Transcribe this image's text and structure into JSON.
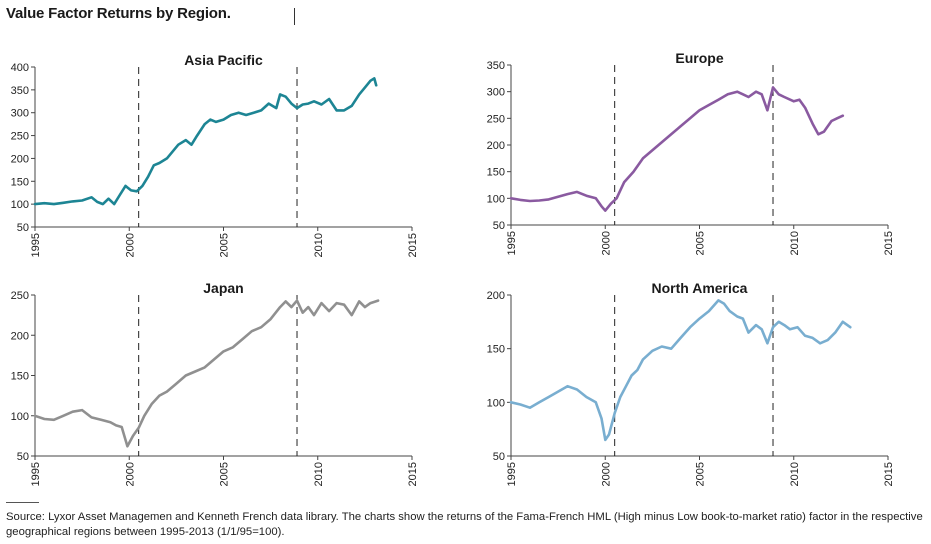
{
  "page": {
    "title": "Value Factor Returns by Region.",
    "source": "Source: Lyxor Asset Managemen and Kenneth French data library. The charts show the returns of the Fama-French HML (High minus Low book-to-market ratio) factor in the respective geographical regions between 1995-2013 (1/1/95=100)."
  },
  "chart_data": [
    {
      "type": "line",
      "title": "Asia Pacific",
      "color": "#1d8594",
      "xlim": [
        1995,
        2015
      ],
      "ylim": [
        50,
        400
      ],
      "xticks": [
        1995,
        2000,
        2005,
        2010,
        2015
      ],
      "yticks": [
        50,
        100,
        150,
        200,
        250,
        300,
        350,
        400
      ],
      "vlines": [
        2000.5,
        2008.9
      ],
      "series": [
        {
          "x": [
            1995,
            1995.5,
            1996,
            1996.5,
            1997,
            1997.5,
            1998,
            1998.3,
            1998.6,
            1998.9,
            1999.2,
            1999.5,
            1999.8,
            2000.1,
            2000.4,
            2000.7,
            2001,
            2001.3,
            2001.6,
            2002,
            2002.3,
            2002.6,
            2003,
            2003.3,
            2003.6,
            2004,
            2004.3,
            2004.6,
            2005,
            2005.4,
            2005.8,
            2006.2,
            2006.6,
            2007,
            2007.4,
            2007.8,
            2008,
            2008.3,
            2008.6,
            2008.9,
            2009.2,
            2009.5,
            2009.8,
            2010.2,
            2010.6,
            2011,
            2011.4,
            2011.8,
            2012.2,
            2012.5,
            2012.8,
            2013,
            2013.1
          ],
          "y": [
            100,
            102,
            100,
            103,
            106,
            108,
            115,
            105,
            100,
            112,
            100,
            120,
            140,
            130,
            128,
            140,
            160,
            185,
            190,
            200,
            215,
            230,
            240,
            230,
            250,
            275,
            285,
            280,
            285,
            295,
            300,
            295,
            300,
            305,
            320,
            310,
            340,
            335,
            320,
            310,
            318,
            320,
            325,
            318,
            330,
            305,
            305,
            315,
            340,
            355,
            370,
            375,
            360
          ]
        }
      ]
    },
    {
      "type": "line",
      "title": "Europe",
      "color": "#8a5aa0",
      "xlim": [
        1995,
        2015
      ],
      "ylim": [
        50,
        350
      ],
      "xticks": [
        1995,
        2000,
        2005,
        2010,
        2015
      ],
      "yticks": [
        50,
        100,
        150,
        200,
        250,
        300,
        350
      ],
      "vlines": [
        2000.5,
        2008.9
      ],
      "series": [
        {
          "x": [
            1995,
            1995.5,
            1996,
            1996.5,
            1997,
            1997.5,
            1998,
            1998.5,
            1999,
            1999.5,
            1999.8,
            2000,
            2000.3,
            2000.6,
            2001,
            2001.5,
            2002,
            2002.5,
            2003,
            2003.5,
            2004,
            2004.5,
            2005,
            2005.5,
            2006,
            2006.5,
            2007,
            2007.3,
            2007.6,
            2008,
            2008.3,
            2008.6,
            2008.9,
            2009.2,
            2009.5,
            2010,
            2010.3,
            2010.6,
            2011,
            2011.3,
            2011.6,
            2012,
            2012.3,
            2012.6
          ],
          "y": [
            100,
            97,
            95,
            96,
            98,
            103,
            108,
            112,
            105,
            100,
            85,
            77,
            90,
            100,
            130,
            150,
            175,
            190,
            205,
            220,
            235,
            250,
            265,
            275,
            285,
            295,
            300,
            295,
            290,
            300,
            295,
            265,
            308,
            295,
            290,
            282,
            285,
            270,
            240,
            220,
            225,
            245,
            250,
            255
          ]
        }
      ]
    },
    {
      "type": "line",
      "title": "Japan",
      "color": "#909090",
      "xlim": [
        1995,
        2015
      ],
      "ylim": [
        50,
        250
      ],
      "xticks": [
        1995,
        2000,
        2005,
        2010,
        2015
      ],
      "yticks": [
        50,
        100,
        150,
        200,
        250
      ],
      "vlines": [
        2000.5,
        2008.9
      ],
      "series": [
        {
          "x": [
            1995,
            1995.5,
            1996,
            1996.5,
            1997,
            1997.5,
            1998,
            1998.5,
            1999,
            1999.3,
            1999.6,
            1999.9,
            2000.2,
            2000.5,
            2000.8,
            2001.2,
            2001.6,
            2002,
            2002.5,
            2003,
            2003.5,
            2004,
            2004.5,
            2005,
            2005.5,
            2006,
            2006.5,
            2007,
            2007.5,
            2008,
            2008.3,
            2008.6,
            2008.9,
            2009.2,
            2009.5,
            2009.8,
            2010.2,
            2010.6,
            2011,
            2011.4,
            2011.8,
            2012.2,
            2012.5,
            2012.8,
            2013.2
          ],
          "y": [
            100,
            96,
            95,
            100,
            105,
            107,
            98,
            95,
            92,
            88,
            86,
            62,
            75,
            85,
            100,
            115,
            125,
            130,
            140,
            150,
            155,
            160,
            170,
            180,
            185,
            195,
            205,
            210,
            220,
            235,
            242,
            235,
            243,
            228,
            235,
            225,
            240,
            230,
            240,
            238,
            225,
            242,
            235,
            240,
            243
          ]
        }
      ]
    },
    {
      "type": "line",
      "title": "North America",
      "color": "#79aed0",
      "xlim": [
        1995,
        2015
      ],
      "ylim": [
        50,
        200
      ],
      "xticks": [
        1995,
        2000,
        2005,
        2010,
        2015
      ],
      "yticks": [
        50,
        100,
        150,
        200
      ],
      "vlines": [
        2000.5,
        2008.9
      ],
      "series": [
        {
          "x": [
            1995,
            1995.5,
            1996,
            1996.5,
            1997,
            1997.5,
            1998,
            1998.5,
            1999,
            1999.5,
            1999.8,
            2000,
            2000.2,
            2000.5,
            2000.8,
            2001.1,
            2001.4,
            2001.7,
            2002,
            2002.5,
            2003,
            2003.5,
            2004,
            2004.5,
            2005,
            2005.5,
            2006,
            2006.3,
            2006.6,
            2007,
            2007.3,
            2007.6,
            2008,
            2008.3,
            2008.6,
            2008.9,
            2009.2,
            2009.5,
            2009.8,
            2010.2,
            2010.6,
            2011,
            2011.4,
            2011.8,
            2012.2,
            2012.6,
            2013
          ],
          "y": [
            100,
            98,
            95,
            100,
            105,
            110,
            115,
            112,
            105,
            100,
            85,
            65,
            70,
            90,
            105,
            115,
            125,
            130,
            140,
            148,
            152,
            150,
            160,
            170,
            178,
            185,
            195,
            192,
            185,
            180,
            178,
            165,
            172,
            168,
            155,
            170,
            175,
            172,
            168,
            170,
            162,
            160,
            155,
            158,
            165,
            175,
            170
          ]
        }
      ]
    }
  ]
}
